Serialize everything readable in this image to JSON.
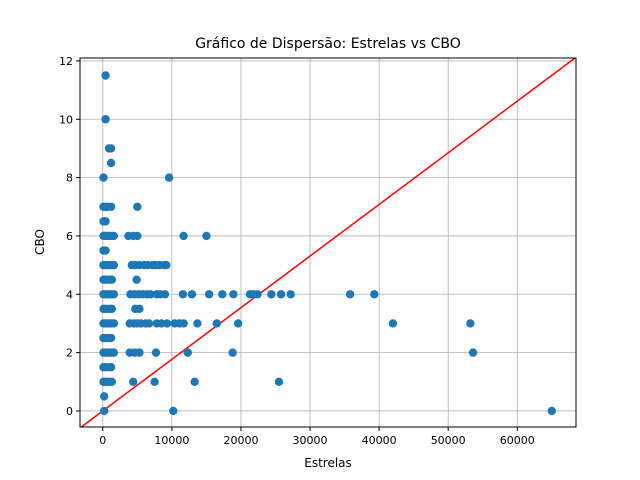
{
  "chart_data": {
    "type": "scatter",
    "title": "Gráfico de Dispersão: Estrelas vs CBO",
    "xlabel": "Estrelas",
    "ylabel": "CBO",
    "xlim": [
      -3300,
      68500
    ],
    "ylim": [
      -0.55,
      12.1
    ],
    "xticks": [
      0,
      10000,
      20000,
      30000,
      40000,
      50000,
      60000
    ],
    "yticks": [
      0,
      2,
      4,
      6,
      8,
      10,
      12
    ],
    "grid": true,
    "point_color": "#1f77b4",
    "reference_line": {
      "color": "#ff0000",
      "slope": 0.000177,
      "intercept": 0
    },
    "series": [
      {
        "points": [
          [
            400,
            11.5
          ],
          [
            400,
            10
          ],
          [
            900,
            9
          ],
          [
            1200,
            9
          ],
          [
            1200,
            8.5
          ],
          [
            100,
            8
          ],
          [
            9600,
            8
          ],
          [
            100,
            7
          ],
          [
            400,
            7
          ],
          [
            700,
            7
          ],
          [
            1200,
            7
          ],
          [
            5000,
            7
          ],
          [
            100,
            6.5
          ],
          [
            400,
            6.5
          ],
          [
            100,
            6
          ],
          [
            300,
            6
          ],
          [
            600,
            6
          ],
          [
            900,
            6
          ],
          [
            1300,
            6
          ],
          [
            1600,
            6
          ],
          [
            3700,
            6
          ],
          [
            4400,
            6
          ],
          [
            5000,
            6
          ],
          [
            11700,
            6
          ],
          [
            15000,
            6
          ],
          [
            100,
            5.5
          ],
          [
            400,
            5.5
          ],
          [
            100,
            5
          ],
          [
            300,
            5
          ],
          [
            600,
            5
          ],
          [
            900,
            5
          ],
          [
            1200,
            5
          ],
          [
            1600,
            5
          ],
          [
            4200,
            5
          ],
          [
            4700,
            5
          ],
          [
            5300,
            5
          ],
          [
            6000,
            5
          ],
          [
            6500,
            5
          ],
          [
            7200,
            5
          ],
          [
            7600,
            5
          ],
          [
            8200,
            5
          ],
          [
            8900,
            5
          ],
          [
            9200,
            5
          ],
          [
            100,
            4.5
          ],
          [
            400,
            4.5
          ],
          [
            900,
            4.5
          ],
          [
            1300,
            4.5
          ],
          [
            4900,
            4.5
          ],
          [
            100,
            4
          ],
          [
            300,
            4
          ],
          [
            600,
            4
          ],
          [
            900,
            4
          ],
          [
            1200,
            4
          ],
          [
            1600,
            4
          ],
          [
            4000,
            4
          ],
          [
            4600,
            4
          ],
          [
            5200,
            4
          ],
          [
            5800,
            4
          ],
          [
            6400,
            4
          ],
          [
            6900,
            4
          ],
          [
            7800,
            4
          ],
          [
            8300,
            4
          ],
          [
            9000,
            4
          ],
          [
            11600,
            4
          ],
          [
            12900,
            4
          ],
          [
            15400,
            4
          ],
          [
            17300,
            4
          ],
          [
            18900,
            4
          ],
          [
            21300,
            4
          ],
          [
            21800,
            4
          ],
          [
            22400,
            4
          ],
          [
            24400,
            4
          ],
          [
            25800,
            4
          ],
          [
            27200,
            4
          ],
          [
            35800,
            4
          ],
          [
            39300,
            4
          ],
          [
            100,
            3.5
          ],
          [
            400,
            3.5
          ],
          [
            900,
            3.5
          ],
          [
            1300,
            3.5
          ],
          [
            4700,
            3.5
          ],
          [
            5300,
            3.5
          ],
          [
            100,
            3
          ],
          [
            300,
            3
          ],
          [
            600,
            3
          ],
          [
            900,
            3
          ],
          [
            1200,
            3
          ],
          [
            1600,
            3
          ],
          [
            3900,
            3
          ],
          [
            4500,
            3
          ],
          [
            5000,
            3
          ],
          [
            5500,
            3
          ],
          [
            6200,
            3
          ],
          [
            6700,
            3
          ],
          [
            7800,
            3
          ],
          [
            8500,
            3
          ],
          [
            9300,
            3
          ],
          [
            10400,
            3
          ],
          [
            11100,
            3
          ],
          [
            11700,
            3
          ],
          [
            13700,
            3
          ],
          [
            16500,
            3
          ],
          [
            19600,
            3
          ],
          [
            42000,
            3
          ],
          [
            53200,
            3
          ],
          [
            100,
            2.5
          ],
          [
            400,
            2.5
          ],
          [
            900,
            2.5
          ],
          [
            1200,
            2.5
          ],
          [
            100,
            2
          ],
          [
            300,
            2
          ],
          [
            600,
            2
          ],
          [
            900,
            2
          ],
          [
            1200,
            2
          ],
          [
            1600,
            2
          ],
          [
            3900,
            2
          ],
          [
            4600,
            2
          ],
          [
            5300,
            2
          ],
          [
            7700,
            2
          ],
          [
            12300,
            2
          ],
          [
            18800,
            2
          ],
          [
            53600,
            2
          ],
          [
            100,
            1.5
          ],
          [
            400,
            1.5
          ],
          [
            900,
            1.5
          ],
          [
            1200,
            1.5
          ],
          [
            100,
            1
          ],
          [
            300,
            1
          ],
          [
            600,
            1
          ],
          [
            900,
            1
          ],
          [
            1300,
            1
          ],
          [
            4400,
            1
          ],
          [
            7500,
            1
          ],
          [
            13300,
            1
          ],
          [
            25500,
            1
          ],
          [
            200,
            0.5
          ],
          [
            200,
            0
          ],
          [
            10200,
            0
          ],
          [
            65000,
            0
          ]
        ]
      }
    ]
  }
}
